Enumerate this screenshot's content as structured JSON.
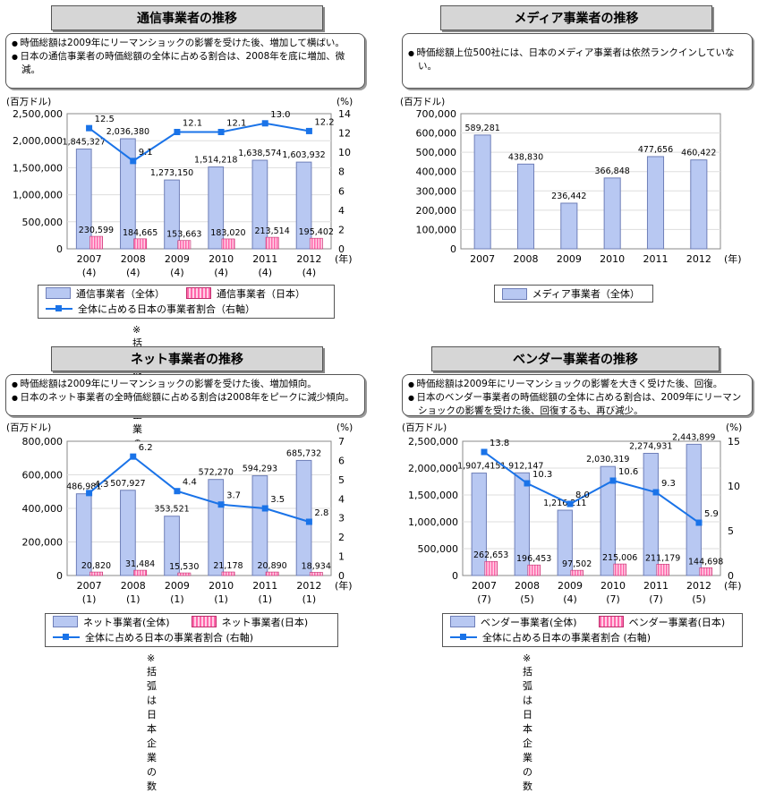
{
  "colors": {
    "bar": "#b8c8f2",
    "bar_edge": "#6f7fb8",
    "japan": "#ff66aa",
    "line": "#1a73e8"
  },
  "panels": [
    {
      "id": "telecom",
      "title": "通信事業者の推移",
      "notes": [
        "時価総額は2009年にリーマンショックの影響を受けた後、増加して横ばい。",
        "日本の通信事業者の時価総額の全体に占める割合は、2008年を底に増加、微減。"
      ],
      "legend": {
        "total": "通信事業者（全体）",
        "japan": "通信事業者（日本）",
        "share": "全体に占める日本の事業者割合（右軸）"
      },
      "footnote": "※括弧は日本企業の数",
      "chart_data": {
        "type": "bar",
        "categories": [
          "2007",
          "2008",
          "2009",
          "2010",
          "2011",
          "2012"
        ],
        "cat_suffix": "(年)",
        "japan_counts": [
          "(4)",
          "(4)",
          "(4)",
          "(4)",
          "(4)",
          "(4)"
        ],
        "left_unit": "(百万ドル)",
        "right_unit": "(%)",
        "ylim": [
          0,
          2500000
        ],
        "yticks": [
          0,
          500000,
          1000000,
          1500000,
          2000000,
          2500000
        ],
        "y2lim": [
          0,
          14
        ],
        "y2ticks": [
          0,
          2,
          4,
          6,
          8,
          10,
          12,
          14
        ],
        "series": [
          {
            "name": "通信事業者（全体）",
            "values": [
              1845327,
              2036380,
              1273150,
              1514218,
              1638574,
              1603932
            ],
            "labels": [
              "1,845,327",
              "2,036,380",
              "1,273,150",
              "1,514,218",
              "1,638,574",
              "1,603,932"
            ]
          },
          {
            "name": "通信事業者（日本）",
            "values": [
              230599,
              184665,
              153663,
              183020,
              213514,
              195402
            ],
            "labels": [
              "230,599",
              "184,665",
              "153,663",
              "183,020",
              "213,514",
              "195,402"
            ]
          },
          {
            "name": "全体に占める日本の事業者割合（右軸）",
            "axis": "right",
            "values": [
              12.5,
              9.1,
              12.1,
              12.1,
              13.0,
              12.2
            ],
            "labels": [
              "12.5",
              "9.1",
              "12.1",
              "12.1",
              "13.0",
              "12.2"
            ]
          }
        ]
      }
    },
    {
      "id": "media",
      "title": "メディア事業者の推移",
      "notes": [
        "時価総額上位500社には、日本のメディア事業者は依然ランクインしていない。"
      ],
      "legend": {
        "total": "メディア事業者（全体）"
      },
      "chart_data": {
        "type": "bar",
        "categories": [
          "2007",
          "2008",
          "2009",
          "2010",
          "2011",
          "2012"
        ],
        "cat_suffix": "(年)",
        "left_unit": "(百万ドル)",
        "ylim": [
          0,
          700000
        ],
        "yticks": [
          0,
          100000,
          200000,
          300000,
          400000,
          500000,
          600000,
          700000
        ],
        "series": [
          {
            "name": "メディア事業者（全体）",
            "values": [
              589281,
              438830,
              236442,
              366848,
              477656,
              460422
            ],
            "labels": [
              "589,281",
              "438,830",
              "236,442",
              "366,848",
              "477,656",
              "460,422"
            ]
          }
        ]
      }
    },
    {
      "id": "net",
      "title": "ネット事業者の推移",
      "notes": [
        "時価総額は2009年にリーマンショックの影響を受けた後、増加傾向。",
        "日本のネット事業者の全時価総額に占める割合は2008年をピークに減少傾向。"
      ],
      "legend": {
        "total": "ネット事業者(全体)",
        "japan": "ネット事業者(日本)",
        "share": "全体に占める日本の事業者割合 (右軸)"
      },
      "footnote": "※括弧は日本企業の数",
      "chart_data": {
        "type": "bar",
        "categories": [
          "2007",
          "2008",
          "2009",
          "2010",
          "2011",
          "2012"
        ],
        "cat_suffix": "(年)",
        "japan_counts": [
          "(1)",
          "(1)",
          "(1)",
          "(1)",
          "(1)",
          "(1)"
        ],
        "left_unit": "(百万ドル)",
        "right_unit": "(%)",
        "ylim": [
          0,
          800000
        ],
        "yticks": [
          0,
          200000,
          400000,
          600000,
          800000
        ],
        "y2lim": [
          0,
          7
        ],
        "y2ticks": [
          0,
          1,
          2,
          3,
          4,
          5,
          6,
          7
        ],
        "series": [
          {
            "name": "ネット事業者(全体)",
            "values": [
              486981,
              507927,
              353521,
              572270,
              594293,
              685732
            ],
            "labels": [
              "486,981",
              "507,927",
              "353,521",
              "572,270",
              "594,293",
              "685,732"
            ]
          },
          {
            "name": "ネット事業者(日本)",
            "values": [
              20820,
              31484,
              15530,
              21178,
              20890,
              18934
            ],
            "labels": [
              "20,820",
              "31,484",
              "15,530",
              "21,178",
              "20,890",
              "18,934"
            ]
          },
          {
            "name": "全体に占める日本の事業者割合 (右軸)",
            "axis": "right",
            "values": [
              4.3,
              6.2,
              4.4,
              3.7,
              3.5,
              2.8
            ],
            "labels": [
              "4.3",
              "6.2",
              "4.4",
              "3.7",
              "3.5",
              "2.8"
            ]
          }
        ]
      }
    },
    {
      "id": "vendor",
      "title": "ベンダー事業者の推移",
      "notes": [
        "時価総額は2009年にリーマンショックの影響を大きく受けた後、回復。",
        "日本のベンダー事業者の時価総額の全体に占める割合は、2009年にリーマンショックの影響を受けた後、回復するも、再び減少。"
      ],
      "legend": {
        "total": "ベンダー事業者(全体)",
        "japan": "ベンダー事業者(日本)",
        "share": "全体に占める日本の事業者割合 (右軸)"
      },
      "footnote": "※括弧は日本企業の数",
      "chart_data": {
        "type": "bar",
        "categories": [
          "2007",
          "2008",
          "2009",
          "2010",
          "2011",
          "2012"
        ],
        "cat_suffix": "(年)",
        "japan_counts": [
          "(7)",
          "(5)",
          "(4)",
          "(7)",
          "(7)",
          "(5)"
        ],
        "left_unit": "(百万ドル)",
        "right_unit": "(%)",
        "ylim": [
          0,
          2500000
        ],
        "yticks": [
          0,
          500000,
          1000000,
          1500000,
          2000000,
          2500000
        ],
        "y2lim": [
          0,
          15
        ],
        "y2ticks": [
          0,
          5,
          10,
          15
        ],
        "series": [
          {
            "name": "ベンダー事業者(全体)",
            "values": [
              1907415,
              1912147,
              1216211,
              2030319,
              2274931,
              2443899
            ],
            "labels": [
              "1,907,415",
              "1,912,147",
              "1,216,211",
              "2,030,319",
              "2,274,931",
              "2,443,899"
            ]
          },
          {
            "name": "ベンダー事業者(日本)",
            "values": [
              262653,
              196453,
              97502,
              215006,
              211179,
              144698
            ],
            "labels": [
              "262,653",
              "196,453",
              "97,502",
              "215,006",
              "211,179",
              "144,698"
            ]
          },
          {
            "name": "全体に占める日本の事業者割合 (右軸)",
            "axis": "right",
            "values": [
              13.8,
              10.3,
              8.0,
              10.6,
              9.3,
              5.9
            ],
            "labels": [
              "13.8",
              "10.3",
              "8.0",
              "10.6",
              "9.3",
              "5.9"
            ]
          }
        ]
      }
    }
  ]
}
